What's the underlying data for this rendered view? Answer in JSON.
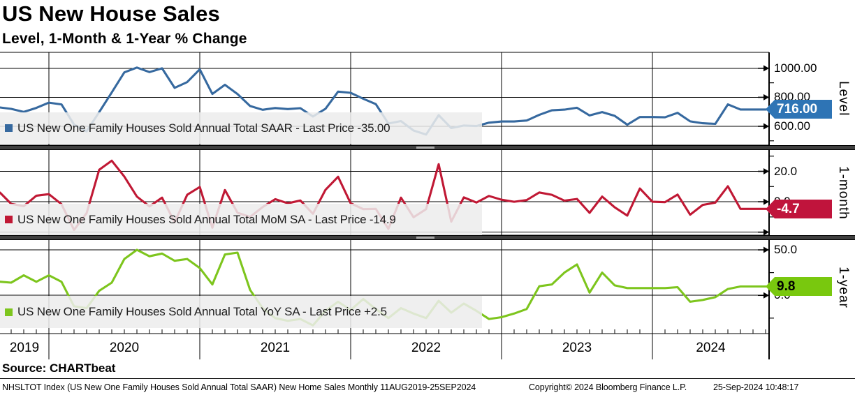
{
  "header": {
    "title": "US New House Sales",
    "subtitle": "Level, 1-Month & 1-Year % Change"
  },
  "panels": [
    {
      "axis_title": "Level",
      "legend_label": "US New One Family Houses Sold Annual Total SAAR - Last Price -35.00",
      "badge": "716.00",
      "badge_value": 716,
      "badge_bg": "#2e74b5",
      "badge_fg": "#ffffff",
      "line_color": "#36699f",
      "tick_labels": [
        {
          "v": 1000,
          "t": "1000.00"
        },
        {
          "v": 800,
          "t": "800.00"
        },
        {
          "v": 600,
          "t": "600.00"
        }
      ],
      "minor_ticks": [
        900,
        700,
        500
      ]
    },
    {
      "axis_title": "1-month",
      "legend_label": "US New One Family Houses Sold Annual Total MoM SA - Last Price -14.9",
      "badge": "-4.7",
      "badge_value": -4.7,
      "badge_bg": "#c0143c",
      "badge_fg": "#ffffff",
      "line_color": "#c01834",
      "tick_labels": [
        {
          "v": 20,
          "t": "20.0"
        },
        {
          "v": 0,
          "t": "0.0"
        },
        {
          "v": -20,
          "t": ""
        }
      ],
      "minor_ticks": [
        30,
        10,
        -10
      ]
    },
    {
      "axis_title": "1-year",
      "legend_label": "US New One Family Houses Sold Annual Total YoY SA - Last Price +2.5",
      "badge": "9.8",
      "badge_value": 9.8,
      "badge_bg": "#79c80e",
      "badge_fg": "#000000",
      "line_color": "#7dc51d",
      "tick_labels": [
        {
          "v": 50,
          "t": "50.0"
        },
        {
          "v": 0,
          "t": "0.0"
        }
      ],
      "minor_ticks": [
        25,
        -25
      ]
    }
  ],
  "x_axis": {
    "year_labels": [
      "2019",
      "2020",
      "2021",
      "2022",
      "2023",
      "2024"
    ]
  },
  "footer": {
    "source": "Source: CHARTbeat",
    "left": "NHSLTOT Index (US New One Family Houses Sold Annual Total SAAR) New Home Sales  Monthly 11AUG2019-25SEP2024",
    "copyright": "Copyright© 2024 Bloomberg Finance L.P.",
    "datetime": "25-Sep-2024 10:48:17"
  },
  "chart_data": [
    {
      "type": "line",
      "title": "US New One Family Houses Sold Annual Total SAAR",
      "ylabel": "Level",
      "start_month": "2019-09",
      "end_month": "2024-08",
      "frequency": "Monthly",
      "last_value": 716.0,
      "net_change": -35.0,
      "ylim": [
        470,
        1110
      ],
      "yticks": [
        600,
        800,
        1000
      ],
      "values": [
        730,
        720,
        699,
        727,
        763,
        751,
        612,
        566,
        698,
        834,
        972,
        1005,
        974,
        1000,
        865,
        905,
        993,
        823,
        886,
        822,
        740,
        714,
        726,
        719,
        725,
        668,
        721,
        839,
        831,
        790,
        753,
        619,
        636,
        571,
        543,
        677,
        588,
        605,
        602,
        625,
        633,
        633,
        640,
        679,
        710,
        715,
        728,
        675,
        698,
        672,
        611,
        664,
        664,
        662,
        693,
        634,
        621,
        617,
        751,
        716
      ]
    },
    {
      "type": "line",
      "title": "US New One Family Houses Sold Annual Total MoM SA",
      "ylabel": "1-month % change",
      "start_month": "2019-09",
      "end_month": "2024-08",
      "frequency": "Monthly",
      "last_value": -4.7,
      "ylim": [
        -22,
        34
      ],
      "yticks": [
        -20,
        0,
        20
      ],
      "values": [
        6.0,
        -1.4,
        -2.9,
        4.0,
        5.0,
        -1.6,
        -18.5,
        -7.5,
        21.0,
        27.0,
        16.5,
        3.4,
        -3.1,
        2.7,
        -13.5,
        4.6,
        9.7,
        -17.1,
        7.7,
        -7.2,
        -10.0,
        -3.5,
        1.7,
        -1.0,
        0.8,
        -7.9,
        7.9,
        16.4,
        -1.0,
        -4.9,
        -4.7,
        -17.8,
        2.7,
        -10.2,
        -4.9,
        24.7,
        -13.1,
        2.9,
        -0.5,
        3.8,
        1.3,
        0.0,
        1.1,
        6.1,
        4.6,
        0.7,
        1.8,
        -7.3,
        3.4,
        -3.7,
        -9.1,
        8.7,
        0.0,
        -0.3,
        4.7,
        -8.5,
        -2.1,
        -0.6,
        10.2,
        -4.7
      ]
    },
    {
      "type": "line",
      "title": "US New One Family Houses Sold Annual Total YoY SA",
      "ylabel": "1-year % change",
      "start_month": "2019-09",
      "end_month": "2024-08",
      "frequency": "Monthly",
      "last_value": 9.8,
      "net_change": 2.5,
      "ylim": [
        -42,
        60
      ],
      "yticks": [
        0,
        50
      ],
      "values": [
        15,
        14,
        22,
        15,
        22,
        15,
        -12,
        -14,
        5,
        14,
        40,
        50,
        43,
        46,
        38,
        40,
        30,
        12,
        45,
        47,
        6,
        -14,
        -25,
        -28,
        -26,
        -33,
        -17,
        -7,
        -16,
        -4,
        -15,
        -25,
        -14,
        -20,
        -25,
        -6,
        -19,
        -9,
        -17,
        -26,
        -24,
        -20,
        -15,
        10,
        12,
        25,
        34,
        3,
        25,
        11,
        8,
        8,
        8,
        8,
        9,
        -7,
        -5,
        -2,
        7,
        9.8
      ]
    }
  ]
}
